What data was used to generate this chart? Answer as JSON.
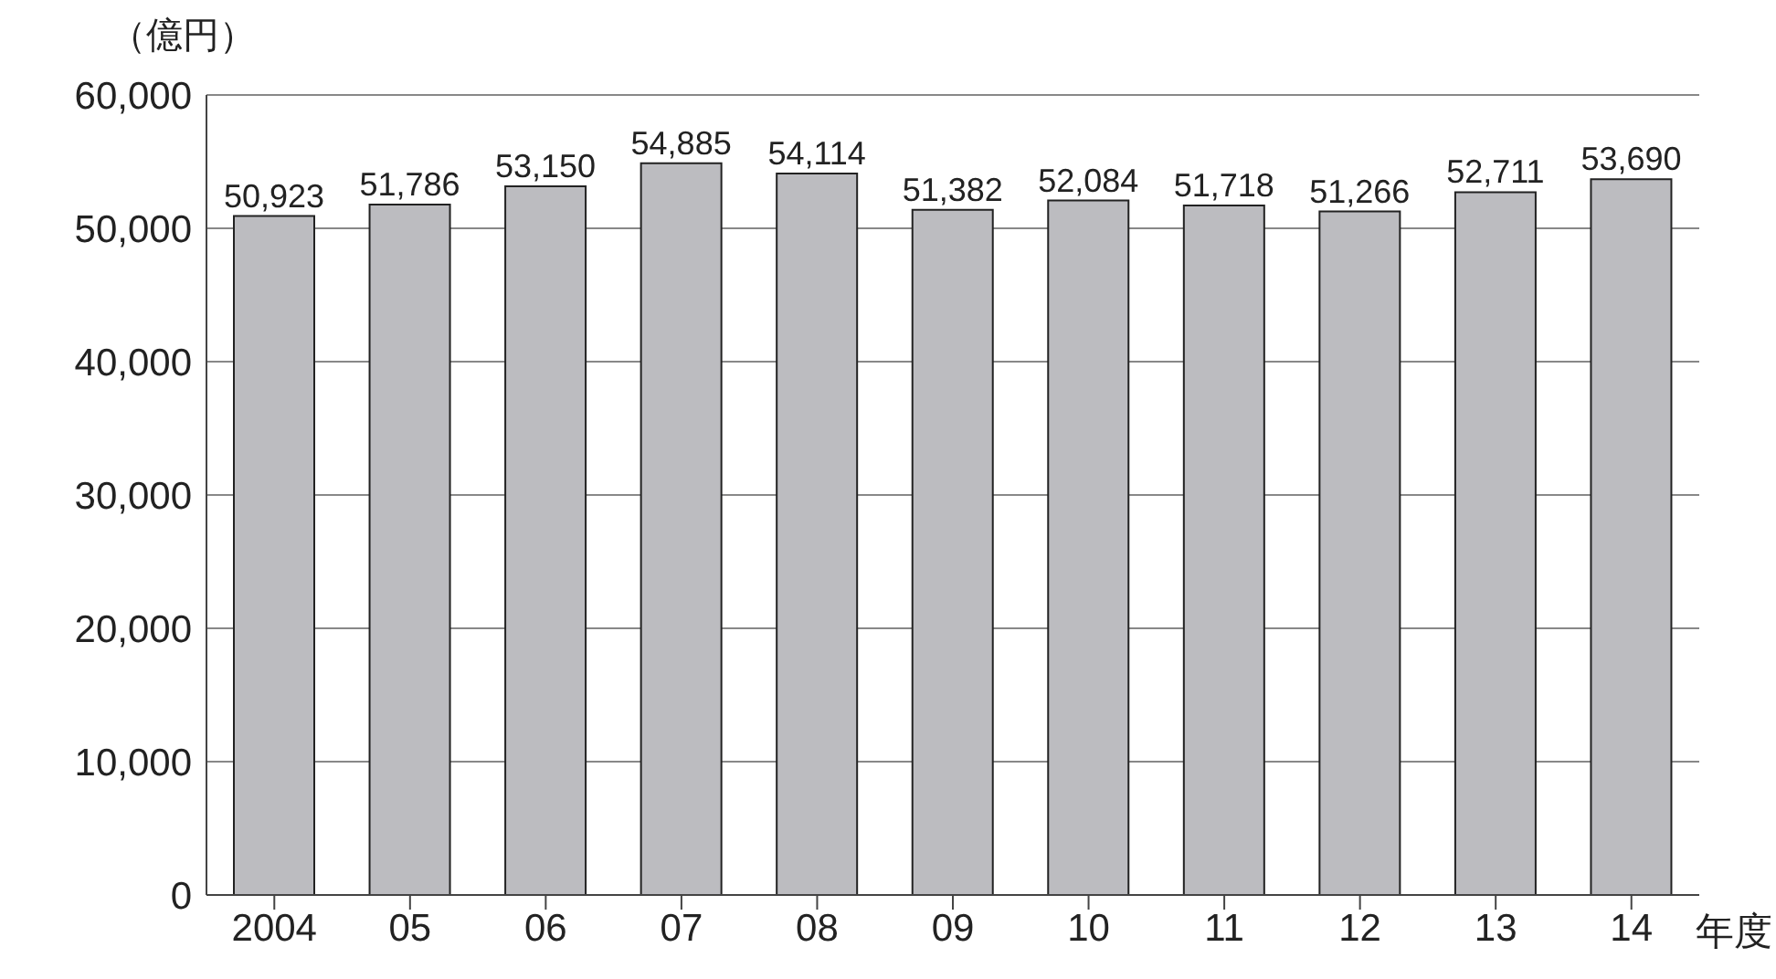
{
  "chart_data": {
    "type": "bar",
    "ylabel": "（億円）",
    "xlabel": "年度",
    "categories": [
      "2004",
      "05",
      "06",
      "07",
      "08",
      "09",
      "10",
      "11",
      "12",
      "13",
      "14"
    ],
    "values": [
      50923,
      51786,
      53150,
      54885,
      54114,
      51382,
      52084,
      51718,
      51266,
      52711,
      53690
    ],
    "value_labels": [
      "50,923",
      "51,786",
      "53,150",
      "54,885",
      "54,114",
      "51,382",
      "52,084",
      "51,718",
      "51,266",
      "52,711",
      "53,690"
    ],
    "color": "#bcbcc0",
    "ylim": [
      0,
      60000
    ],
    "yticks": [
      0,
      {
        "value": 10000,
        "label": "10,000"
      },
      {
        "value": 20000,
        "label": "20,000"
      },
      {
        "value": 30000,
        "label": "30,000"
      },
      {
        "value": 40000,
        "label": "40,000"
      },
      {
        "value": 50000,
        "label": "50,000"
      },
      {
        "value": 60000,
        "label": "60,000"
      }
    ],
    "grid": "y"
  }
}
